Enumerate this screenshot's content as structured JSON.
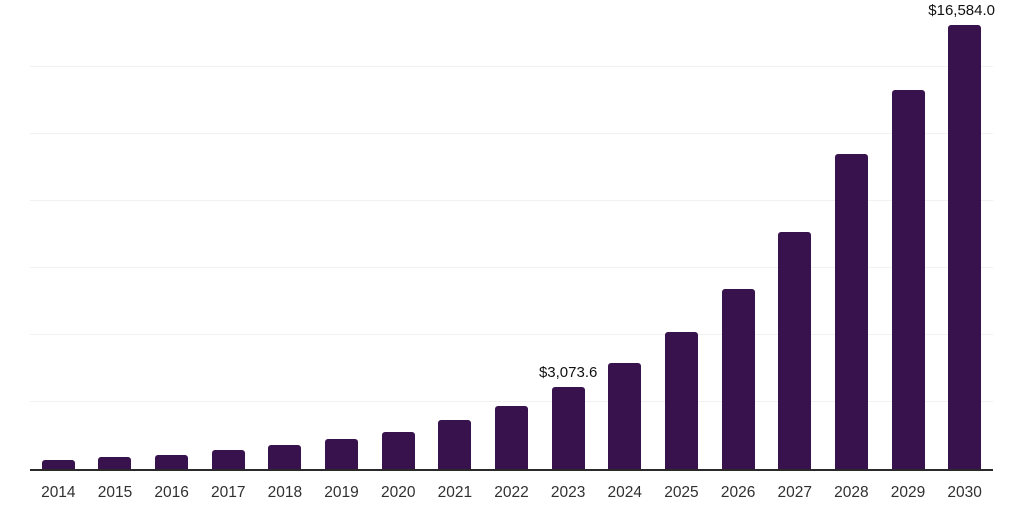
{
  "chart_data": {
    "type": "bar",
    "title": "",
    "xlabel": "",
    "ylabel": "",
    "categories": [
      "2014",
      "2015",
      "2016",
      "2017",
      "2018",
      "2019",
      "2020",
      "2021",
      "2022",
      "2023",
      "2024",
      "2025",
      "2026",
      "2027",
      "2028",
      "2029",
      "2030"
    ],
    "values": [
      320,
      430,
      540,
      720,
      880,
      1120,
      1380,
      1840,
      2350,
      3073.6,
      3950,
      5130,
      6730,
      8830,
      11760,
      14160,
      16584.0
    ],
    "value_labels": {
      "2023": "$3,073.6",
      "2030": "$16,584.0"
    },
    "ylim": [
      0,
      17500
    ],
    "gridline_step": 2500,
    "grid": "horizontal",
    "legend_position": "none",
    "bar_color": "#38124D",
    "gridline_color": "#F1F1F1",
    "axis_line_color": "#2A2A2A",
    "tick_label_color": "#303030",
    "data_label_color": "#111111",
    "background_color": "#FFFFFF"
  }
}
